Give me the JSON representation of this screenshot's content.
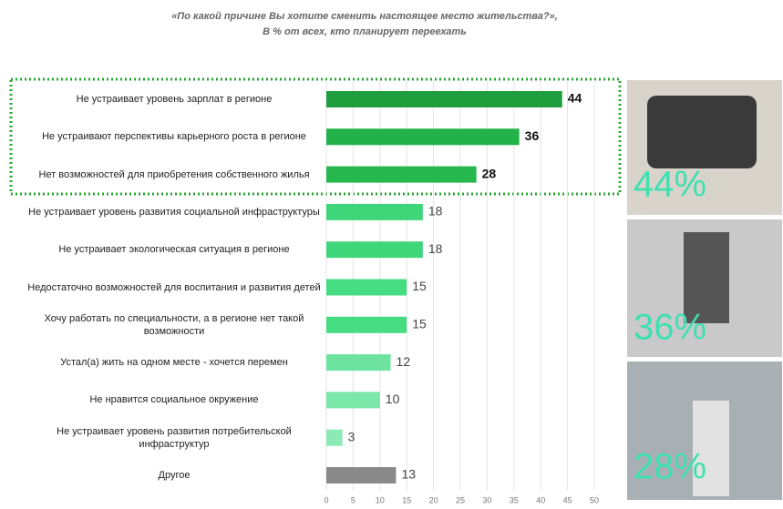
{
  "chart_data": {
    "type": "barh",
    "title": "«По какой причине Вы хотите сменить настоящее место жительства?»,",
    "subtitle": "В % от всех, кто планирует переехать",
    "categories": [
      "Не устраивает уровень зарплат в регионе",
      "Не устраивают перспективы карьерного роста в регионе",
      "Нет возможностей для приобретения собственного жилья",
      "Не устраивает уровень развития социальной инфраструктуры",
      "Не устраивает экологическая ситуация в регионе",
      "Недостаточно возможностей для воспитания и развития детей",
      "Хочу работать по специальности, а в регионе нет такой возможности",
      "Устал(а) жить на одном месте - хочется перемен",
      "Не нравится социальное окружение",
      "Не устраивает уровень развития потребительской инфраструктур",
      "Другое"
    ],
    "values": [
      44,
      36,
      28,
      18,
      18,
      15,
      15,
      12,
      10,
      3,
      13
    ],
    "colors": [
      "#1e9e3c",
      "#22b24a",
      "#26b84e",
      "#3fd67a",
      "#3fd67a",
      "#45dc82",
      "#45dc82",
      "#6ee3a0",
      "#7ae6a8",
      "#8cebb5",
      "#8a8a8a"
    ],
    "xlim": [
      0,
      50
    ],
    "xticks": [
      0,
      5,
      10,
      15,
      20,
      25,
      30,
      35,
      40,
      45,
      50
    ],
    "grid": true,
    "annotations": [
      "44%",
      "36%",
      "28%"
    ]
  }
}
